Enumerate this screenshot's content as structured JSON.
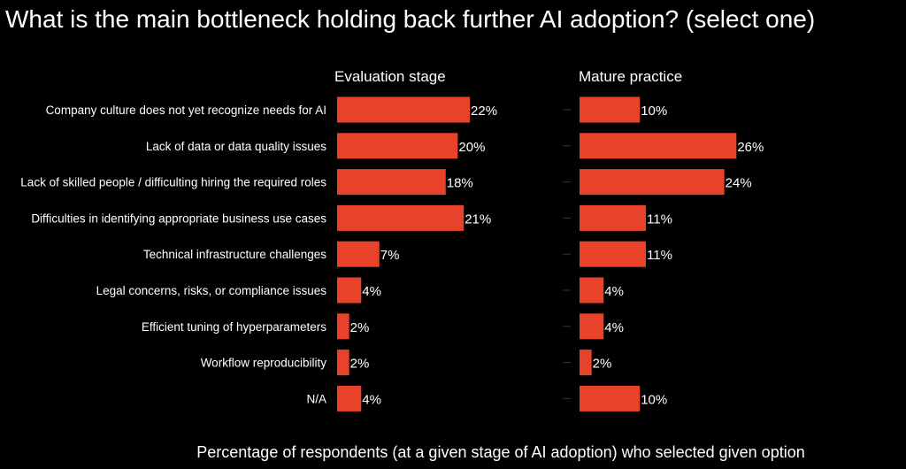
{
  "chart_data": {
    "type": "bar",
    "orientation": "horizontal",
    "title": "What is the main bottleneck holding back further AI adoption?  (select one)",
    "xlabel": "Percentage of respondents (at a given stage of AI adoption) who selected given option",
    "categories": [
      "Company culture does not yet recognize needs for AI",
      "Lack of data or data quality issues",
      "Lack of skilled people / difficulting hiring the required roles",
      "Difficulties in identifying appropriate business use cases",
      "Technical infrastructure challenges",
      "Legal concerns, risks, or compliance issues",
      "Efficient tuning of hyperparameters",
      "Workflow reproducibility",
      "N/A"
    ],
    "series": [
      {
        "name": "Evaluation stage",
        "values": [
          22,
          20,
          18,
          21,
          7,
          4,
          2,
          2,
          4
        ],
        "labels": [
          "22%",
          "20%",
          "18%",
          "21%",
          "7%",
          "4%",
          "2%",
          "2%",
          "4%"
        ]
      },
      {
        "name": "Mature practice",
        "values": [
          10,
          26,
          24,
          11,
          11,
          4,
          4,
          2,
          10
        ],
        "labels": [
          "10%",
          "26%",
          "24%",
          "11%",
          "11%",
          "4%",
          "4%",
          "2%",
          "10%"
        ]
      }
    ],
    "bar_color": "#e8432a",
    "background": "#000000",
    "text_color": "#ffffff"
  }
}
